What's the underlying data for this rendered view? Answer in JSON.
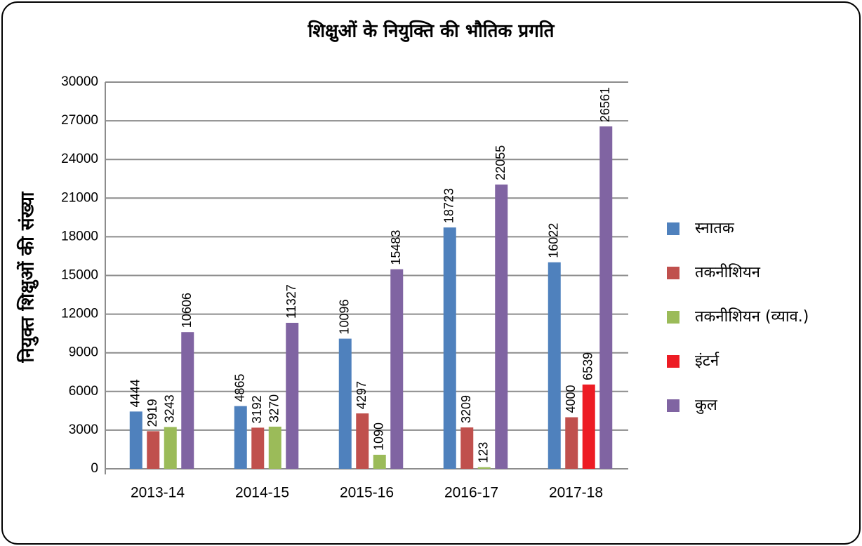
{
  "chart_data": {
    "type": "bar",
    "title": "शिक्षुओं के नियुक्ति की भौतिक प्रगति",
    "y_label": "नियुक्त शिक्षुओं की संख्या",
    "categories": [
      "2013-14",
      "2014-15",
      "2015-16",
      "2016-17",
      "2017-18"
    ],
    "series": [
      {
        "name": "स्नातक",
        "color": "#4f81bd",
        "values": [
          4444,
          4865,
          10096,
          18723,
          16022
        ]
      },
      {
        "name": "तकनीशियन",
        "color": "#c0504d",
        "values": [
          2919,
          3192,
          4297,
          3209,
          4000
        ]
      },
      {
        "name": "तकनीशियन (व्याव.)",
        "color": "#9bbb59",
        "values": [
          3243,
          3270,
          1090,
          123,
          null
        ]
      },
      {
        "name": "इंटर्न",
        "color": "#ed1c24",
        "values": [
          null,
          null,
          null,
          null,
          6539
        ]
      },
      {
        "name": "कुल",
        "color": "#8064a2",
        "values": [
          10606,
          11327,
          15483,
          22055,
          26561
        ]
      }
    ],
    "ylim": [
      0,
      30000
    ],
    "yticks": [
      0,
      3000,
      6000,
      9000,
      12000,
      15000,
      18000,
      21000,
      24000,
      27000,
      30000
    ],
    "grid": true,
    "legend": "right"
  }
}
